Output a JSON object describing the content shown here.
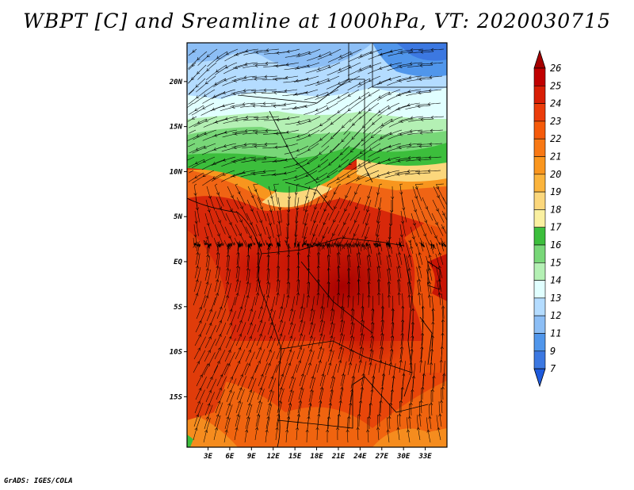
{
  "title": "WBPT [C] and Sreamline at 1000hPa, VT: 2020030715",
  "footer": "GrADS: IGES/COLA",
  "map": {
    "lat_ticks": [
      "20N",
      "15N",
      "10N",
      "5N",
      "EQ",
      "5S",
      "10S",
      "15S"
    ],
    "lon_ticks": [
      "3E",
      "6E",
      "9E",
      "12E",
      "15E",
      "18E",
      "21E",
      "24E",
      "27E",
      "30E",
      "33E"
    ],
    "lat_values": [
      20,
      15,
      10,
      5,
      0,
      -5,
      -10,
      -15
    ],
    "lon_values": [
      3,
      6,
      9,
      12,
      15,
      18,
      21,
      24,
      27,
      30,
      33
    ]
  },
  "colorbar": {
    "labels": [
      "26",
      "25",
      "24",
      "23",
      "22",
      "21",
      "20",
      "19",
      "18",
      "17",
      "16",
      "15",
      "14",
      "13",
      "12",
      "11",
      "9",
      "7"
    ],
    "colors": [
      "#a50000",
      "#c00000",
      "#d81e05",
      "#eb3c0a",
      "#f55a0a",
      "#f87814",
      "#fa961e",
      "#fbb43c",
      "#fbd77c",
      "#faf0a0",
      "#3cbe3c",
      "#78d778",
      "#b4f0b4",
      "#e1ffff",
      "#b4dcff",
      "#8cbef5",
      "#5096eb",
      "#3c78e1",
      "#1e5adc"
    ]
  }
}
